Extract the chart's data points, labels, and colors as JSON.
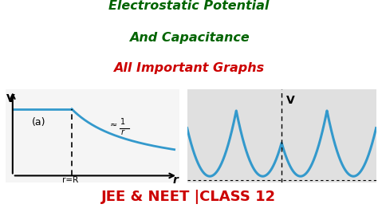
{
  "bg_color": "#ffffff",
  "title_line1": "Electrostatic Potential",
  "title_line2": "And Capacitance",
  "title_line3": "All Important Graphs",
  "title_color1": "#006400",
  "title_color3": "#cc0000",
  "bottom_text": "JEE & NEET |CLASS 12",
  "bottom_color": "#cc0000",
  "graph1_bg": "#f5f5f5",
  "graph2_bg": "#e0e0e0",
  "curve_color": "#3399cc",
  "annotation_text": "≈  1\n    r",
  "label_V": "V",
  "label_a": "(a)",
  "label_rR": "r=R",
  "label_r": "r",
  "label_V2": "V"
}
